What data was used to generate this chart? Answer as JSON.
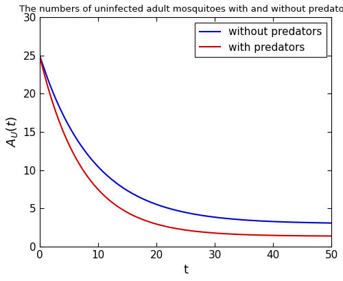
{
  "title": "The numbers of uninfected adult mosquitoes with and without predators",
  "xlabel": "t",
  "ylabel": "$A_{U}(t)$",
  "xlim": [
    0,
    50
  ],
  "ylim": [
    0,
    30
  ],
  "xticks": [
    0,
    10,
    20,
    30,
    40,
    50
  ],
  "yticks": [
    0,
    5,
    10,
    15,
    20,
    25,
    30
  ],
  "line_without_color": "#0000CC",
  "line_with_color": "#CC0000",
  "line_width": 1.5,
  "legend_without": "without predators",
  "legend_with": "with predators",
  "AU0": 25,
  "t_end": 50,
  "t_points": 2000,
  "title_fontsize": 9.5,
  "axis_label_fontsize": 13,
  "tick_fontsize": 11,
  "legend_fontsize": 11,
  "lam_no": 0.32,
  "mu_no": 0.108,
  "lam_yes": 0.18,
  "mu_yes": 0.135,
  "bump_amp": 0.3,
  "bump_rate": 2.0
}
